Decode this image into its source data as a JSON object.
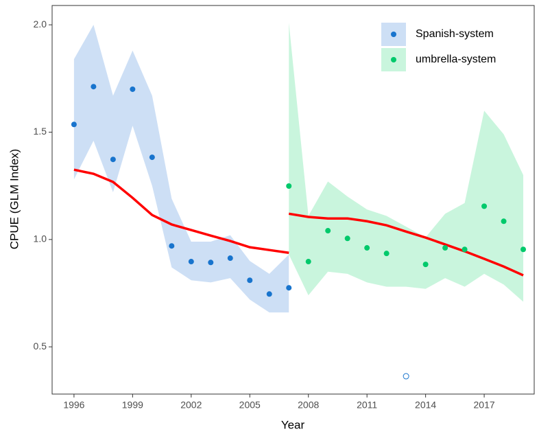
{
  "chart_data": {
    "type": "ribbon-line",
    "x_label": "Year",
    "y_label": "CPUE (GLM Index)",
    "xlim": [
      1994.88,
      2019.56
    ],
    "ylim": [
      0.28,
      2.09
    ],
    "xticks": [
      1996,
      1999,
      2002,
      2005,
      2008,
      2011,
      2014,
      2017
    ],
    "yticks": [
      0.5,
      {
        "value": 1,
        "label": "1.0"
      },
      1.5,
      {
        "value": 2,
        "label": "2.0"
      }
    ],
    "legend": "top-right",
    "trend_color": "#ff0000",
    "series": [
      {
        "name": "Spanish-system",
        "color": "#1874cd",
        "band_color": "#cddff5",
        "x": [
          1996,
          1997,
          1998,
          1999,
          2000,
          2001,
          2002,
          2003,
          2004,
          2005,
          2006,
          2007
        ],
        "values": [
          1.536,
          1.712,
          1.373,
          1.7,
          1.383,
          0.97,
          0.897,
          0.893,
          0.913,
          0.81,
          0.746,
          0.775
        ],
        "upper": [
          1.84,
          2.0,
          1.67,
          1.88,
          1.67,
          1.19,
          0.99,
          0.99,
          1.02,
          0.9,
          0.84,
          0.93
        ],
        "lower": [
          1.28,
          1.46,
          1.22,
          1.53,
          1.25,
          0.87,
          0.81,
          0.8,
          0.82,
          0.72,
          0.66,
          0.66
        ],
        "trend": [
          1.325,
          1.306,
          1.268,
          1.194,
          1.114,
          1.07,
          1.044,
          1.018,
          0.993,
          0.964,
          0.951,
          0.938
        ]
      },
      {
        "name": "umbrella-system",
        "color": "#00c96b",
        "band_color": "#c9f5dd",
        "x": [
          2007,
          2008,
          2009,
          2010,
          2011,
          2012,
          2013,
          2014,
          2015,
          2016,
          2017,
          2018,
          2019
        ],
        "values": [
          1.249,
          0.897,
          1.041,
          1.005,
          0.961,
          0.935,
          null,
          0.884,
          0.961,
          0.954,
          1.155,
          1.085,
          0.954
        ],
        "upper": [
          2.01,
          1.11,
          1.27,
          1.2,
          1.14,
          1.11,
          1.06,
          1.01,
          1.12,
          1.17,
          1.6,
          1.49,
          1.3
        ],
        "lower": [
          0.93,
          0.74,
          0.85,
          0.84,
          0.8,
          0.78,
          0.78,
          0.77,
          0.82,
          0.78,
          0.84,
          0.79,
          0.71
        ],
        "trend": [
          1.12,
          1.105,
          1.098,
          1.098,
          1.085,
          1.066,
          1.037,
          1.009,
          0.977,
          0.945,
          0.91,
          0.874,
          0.833
        ]
      }
    ],
    "outlier": {
      "x": 2013,
      "value": 0.363,
      "color": "#1874cd"
    }
  }
}
